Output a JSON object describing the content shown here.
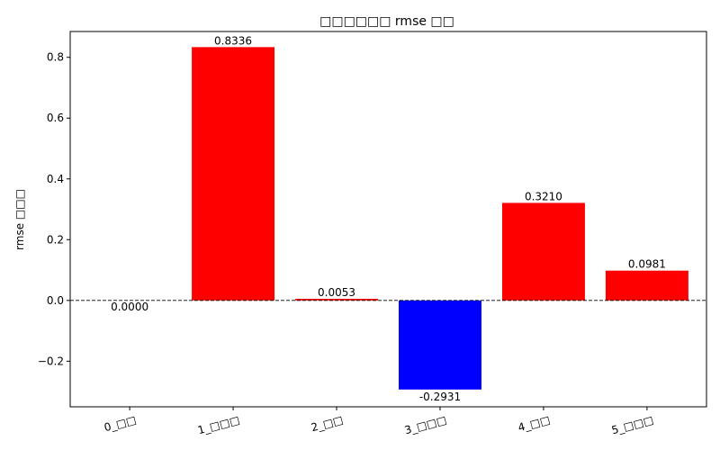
{
  "chart_data": {
    "type": "bar",
    "title": "□□□□□□ rmse □□",
    "xlabel": "",
    "ylabel": "rmse □□□",
    "categories": [
      "0_□□",
      "1_□□□",
      "2_□□",
      "3_□□□",
      "4_□□",
      "5_□□□"
    ],
    "values": [
      0.0,
      0.8336,
      0.0053,
      -0.2931,
      0.321,
      0.0981
    ],
    "data_labels": [
      "0.0000",
      "0.8336",
      "0.0053",
      "-0.2931",
      "0.3210",
      "0.0981"
    ],
    "ylim": [
      -0.35,
      0.885
    ],
    "yticks": [
      -0.2,
      0.0,
      0.2,
      0.4,
      0.6,
      0.8
    ],
    "ytick_labels": [
      "−0.2",
      "0.0",
      "0.2",
      "0.4",
      "0.6",
      "0.8"
    ],
    "zero_line": "dashed",
    "grid": false,
    "legend": "none",
    "colors": {
      "positive": "#ff0000",
      "negative": "#0000ff",
      "axis": "#000000",
      "background": "#ffffff"
    }
  }
}
